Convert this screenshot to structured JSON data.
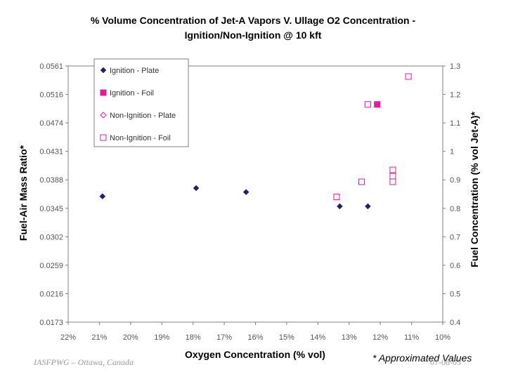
{
  "chart_data": {
    "type": "scatter",
    "title_line1": "% Volume Concentration of Jet-A Vapors V. Ullage O2 Concentration -",
    "title_line2": "Ignition/Non-Ignition @ 10 kft",
    "xlabel": "Oxygen Concentration (% vol)",
    "ylabel_left": "Fuel-Air Mass Ratio*",
    "ylabel_right": "Fuel Concentration (% vol Jet-A)*",
    "x_reversed": true,
    "xlim": [
      22,
      10
    ],
    "x_ticks": [
      "22%",
      "21%",
      "20%",
      "19%",
      "18%",
      "17%",
      "16%",
      "15%",
      "14%",
      "13%",
      "12%",
      "11%",
      "10%"
    ],
    "y_right_lim": [
      0.4,
      1.3
    ],
    "y_right_ticks": [
      "0.4",
      "0.5",
      "0.6",
      "0.7",
      "0.8",
      "0.9",
      "1",
      "1.1",
      "1.2",
      "1.3"
    ],
    "y_left_ticks": [
      "0.0173",
      "0.0216",
      "0.0259",
      "0.0302",
      "0.0345",
      "0.0388",
      "0.0431",
      "0.0474",
      "0.0516",
      "0.0561"
    ],
    "legend_position": "top-left",
    "series": [
      {
        "name": "Ignition - Plate",
        "marker": "diamond",
        "color": "#1f1f6e",
        "points": [
          {
            "x": 20.9,
            "y": 0.842
          },
          {
            "x": 17.9,
            "y": 0.871
          },
          {
            "x": 16.3,
            "y": 0.857
          },
          {
            "x": 13.3,
            "y": 0.807
          },
          {
            "x": 12.4,
            "y": 0.807
          }
        ]
      },
      {
        "name": "Ignition - Foil",
        "marker": "square",
        "color": "#e8199b",
        "points": [
          {
            "x": 12.1,
            "y": 1.165
          }
        ]
      },
      {
        "name": "Non-Ignition - Plate",
        "marker": "diamond-open",
        "color": "#e8199b",
        "points": [
          {
            "x": 12.4,
            "y": 1.165
          }
        ]
      },
      {
        "name": "Non-Ignition - Foil",
        "marker": "square-open",
        "color": "#e8199b",
        "points": [
          {
            "x": 12.4,
            "y": 1.165
          },
          {
            "x": 11.1,
            "y": 1.263
          },
          {
            "x": 11.6,
            "y": 0.935
          },
          {
            "x": 11.6,
            "y": 0.913
          },
          {
            "x": 11.6,
            "y": 0.893
          },
          {
            "x": 12.6,
            "y": 0.893
          },
          {
            "x": 13.4,
            "y": 0.84
          }
        ]
      }
    ]
  },
  "footer": {
    "left": "IASFPWG – Ottawa, Canada",
    "note": "* Approximated Values",
    "right": "07-08-05"
  }
}
